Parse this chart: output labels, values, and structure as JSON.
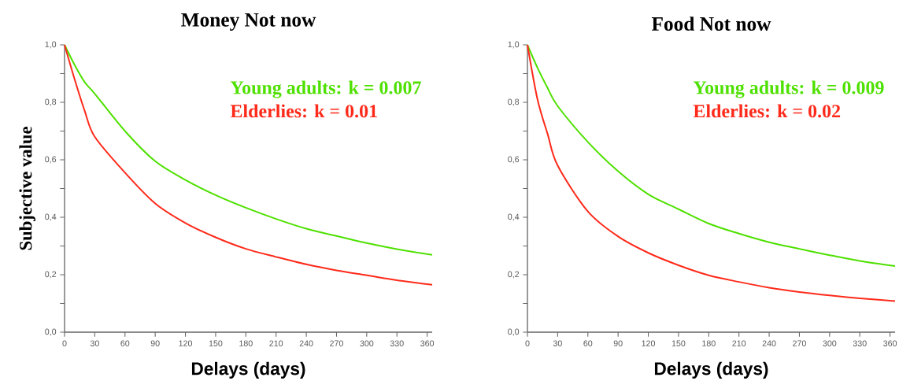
{
  "chart_data": [
    {
      "type": "line",
      "title": "Money Not now",
      "xlabel": "Delays (days)",
      "ylabel": "Subjective value",
      "x": [
        0,
        10,
        20,
        30,
        60,
        90,
        120,
        150,
        180,
        210,
        240,
        270,
        300,
        330,
        365
      ],
      "series": [
        {
          "name": "Young adults: k = 0.007",
          "color": "#4ee000",
          "values": [
            1.0,
            0.93,
            0.87,
            0.83,
            0.7,
            0.595,
            0.53,
            0.477,
            0.433,
            0.394,
            0.36,
            0.335,
            0.31,
            0.289,
            0.269
          ]
        },
        {
          "name": "Elderlies: k = 0.01",
          "color": "#ff2a1a",
          "values": [
            1.0,
            0.88,
            0.77,
            0.68,
            0.555,
            0.448,
            0.38,
            0.33,
            0.29,
            0.262,
            0.236,
            0.215,
            0.198,
            0.181,
            0.165
          ]
        }
      ],
      "xlim": [
        0,
        365
      ],
      "ylim": [
        0,
        1
      ],
      "xticks": [
        0,
        30,
        60,
        90,
        120,
        150,
        180,
        210,
        240,
        270,
        300,
        330,
        360
      ],
      "yticks": [
        {
          "value": 0,
          "label": "0,0"
        },
        {
          "value": 0.1,
          "label": null
        },
        {
          "value": 0.2,
          "label": "0,2"
        },
        {
          "value": 0.3,
          "label": null
        },
        {
          "value": 0.4,
          "label": "0,4"
        },
        {
          "value": 0.5,
          "label": null
        },
        {
          "value": 0.6,
          "label": "0,6"
        },
        {
          "value": 0.7,
          "label": null
        },
        {
          "value": 0.8,
          "label": "0,8"
        },
        {
          "value": 0.9,
          "label": null
        },
        {
          "value": 1,
          "label": "1,0"
        }
      ]
    },
    {
      "type": "line",
      "title": "Food Not now",
      "xlabel": "Delays (days)",
      "x": [
        0,
        10,
        20,
        30,
        60,
        90,
        120,
        150,
        180,
        210,
        240,
        270,
        300,
        330,
        365
      ],
      "series": [
        {
          "name": "Young adults: k = 0.009",
          "color": "#4ee000",
          "values": [
            1.0,
            0.92,
            0.85,
            0.787,
            0.662,
            0.56,
            0.48,
            0.428,
            0.378,
            0.343,
            0.313,
            0.29,
            0.268,
            0.248,
            0.23
          ]
        },
        {
          "name": "Elderlies: k = 0.02",
          "color": "#ff2a1a",
          "values": [
            1.0,
            0.81,
            0.69,
            0.58,
            0.42,
            0.333,
            0.276,
            0.233,
            0.198,
            0.175,
            0.155,
            0.14,
            0.128,
            0.118,
            0.108
          ]
        }
      ],
      "xlim": [
        0,
        365
      ],
      "ylim": [
        0,
        1
      ],
      "xticks": [
        0,
        30,
        60,
        90,
        120,
        150,
        180,
        210,
        240,
        270,
        300,
        330,
        360
      ],
      "yticks": [
        {
          "value": 0,
          "label": "0,0"
        },
        {
          "value": 0.1,
          "label": null
        },
        {
          "value": 0.2,
          "label": "0,2"
        },
        {
          "value": 0.3,
          "label": null
        },
        {
          "value": 0.4,
          "label": "0,4"
        },
        {
          "value": 0.5,
          "label": null
        },
        {
          "value": 0.6,
          "label": "0,6"
        },
        {
          "value": 0.7,
          "label": null
        },
        {
          "value": 0.8,
          "label": "0,8"
        },
        {
          "value": 0.9,
          "label": null
        },
        {
          "value": 1,
          "label": "1,0"
        }
      ]
    }
  ]
}
